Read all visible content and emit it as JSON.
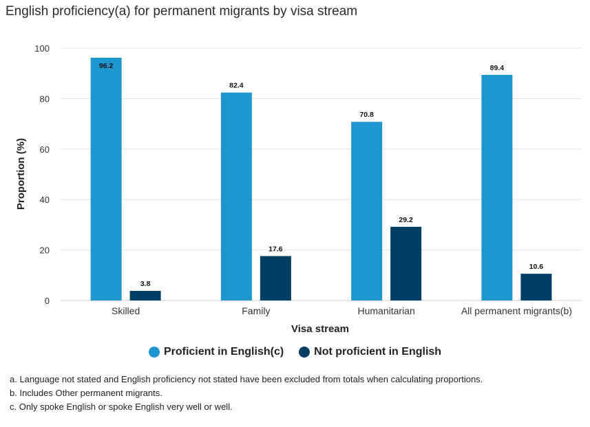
{
  "title": "English proficiency(a) for permanent migrants by visa stream",
  "colors": {
    "proficient": "#1e96cf",
    "not_proficient": "#003f63",
    "grid": "#e3e3e3"
  },
  "chart_data": {
    "type": "bar",
    "categories": [
      "Skilled",
      "Family",
      "Humanitarian",
      "All permanent migrants(b)"
    ],
    "series": [
      {
        "name": "Proficient in English(c)",
        "values": [
          96.2,
          82.4,
          70.8,
          89.4
        ]
      },
      {
        "name": "Not proficient in English",
        "values": [
          3.8,
          17.6,
          29.2,
          10.6
        ]
      }
    ],
    "xlabel": "Visa stream",
    "ylabel": "Proportion (%)",
    "ylim": [
      0,
      100
    ],
    "yticks": [
      0,
      20,
      40,
      60,
      80,
      100
    ],
    "grid": true,
    "legend": "bottom"
  },
  "notes": [
    "a. Language not stated and English proficiency not stated have been excluded from totals when calculating proportions.",
    "b. Includes Other permanent migrants.",
    "c. Only spoke English or spoke English very well or well."
  ]
}
